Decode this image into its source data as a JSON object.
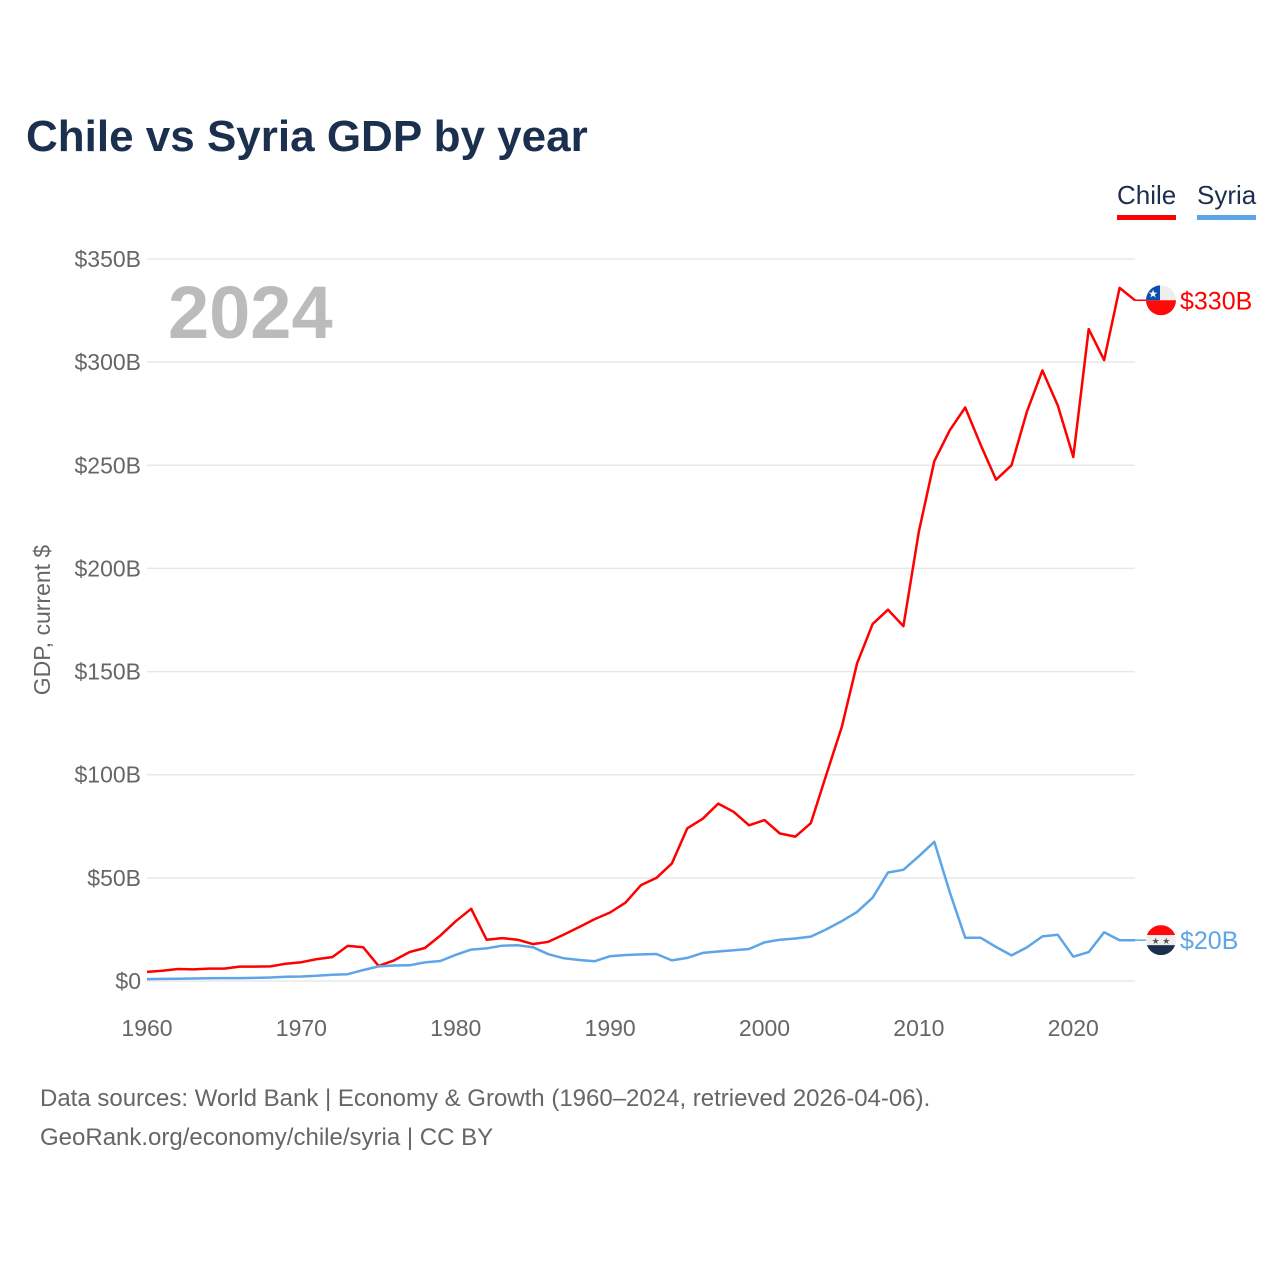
{
  "chart_data": {
    "type": "line",
    "title": "Chile vs Syria GDP by year",
    "ylabel": "GDP, current $",
    "xlabel": "",
    "year_label": "2024",
    "ylim": [
      0,
      350
    ],
    "xlim": [
      1960,
      2024
    ],
    "yticks": [
      {
        "v": 0,
        "label": "$0"
      },
      {
        "v": 50,
        "label": "$50B"
      },
      {
        "v": 100,
        "label": "$100B"
      },
      {
        "v": 150,
        "label": "$150B"
      },
      {
        "v": 200,
        "label": "$200B"
      },
      {
        "v": 250,
        "label": "$250B"
      },
      {
        "v": 300,
        "label": "$300B"
      },
      {
        "v": 350,
        "label": "$350B"
      }
    ],
    "xticks": [
      1960,
      1970,
      1980,
      1990,
      2000,
      2010,
      2020
    ],
    "grid": true,
    "legend_position": "top-right",
    "x": [
      1960,
      1961,
      1962,
      1963,
      1964,
      1965,
      1966,
      1967,
      1968,
      1969,
      1970,
      1971,
      1972,
      1973,
      1974,
      1975,
      1976,
      1977,
      1978,
      1979,
      1980,
      1981,
      1982,
      1983,
      1984,
      1985,
      1986,
      1987,
      1988,
      1989,
      1990,
      1991,
      1992,
      1993,
      1994,
      1995,
      1996,
      1997,
      1998,
      1999,
      2000,
      2001,
      2002,
      2003,
      2004,
      2005,
      2006,
      2007,
      2008,
      2009,
      2010,
      2011,
      2012,
      2013,
      2014,
      2015,
      2016,
      2017,
      2018,
      2019,
      2020,
      2021,
      2022,
      2023,
      2024
    ],
    "series": [
      {
        "name": "Chile",
        "color": "#ff0000",
        "end_label": "$330B",
        "values": [
          4.4,
          5,
          5.8,
          5.6,
          6,
          6,
          7,
          7,
          7.1,
          8.4,
          9.1,
          10.6,
          11.6,
          17,
          16.4,
          7.3,
          10,
          14,
          16,
          22,
          29,
          35,
          20,
          20.8,
          20,
          17.9,
          19,
          22.5,
          26.2,
          30,
          33.2,
          38,
          46.5,
          50,
          57,
          74,
          78.7,
          86,
          82,
          75.5,
          78,
          71.5,
          70,
          76.5,
          100,
          123,
          154,
          173,
          180,
          172,
          218,
          252,
          267,
          278,
          260,
          243,
          250,
          276,
          296,
          279,
          254,
          316,
          301,
          336,
          330
        ]
      },
      {
        "name": "Syria",
        "color": "#5ea5e8",
        "end_label": "$20B",
        "values": [
          0.9,
          1,
          1.1,
          1.2,
          1.3,
          1.4,
          1.4,
          1.5,
          1.7,
          2.1,
          2.2,
          2.5,
          3,
          3.3,
          5.3,
          7.1,
          7.5,
          7.6,
          9,
          9.7,
          12.7,
          15.2,
          15.8,
          17.1,
          17.3,
          16.4,
          13,
          11,
          10.2,
          9.6,
          12,
          12.6,
          12.9,
          13.1,
          10,
          11.2,
          13.6,
          14.3,
          14.9,
          15.5,
          18.7,
          20,
          20.6,
          21.5,
          25,
          29,
          33.5,
          40.4,
          52.6,
          53.9,
          60.5,
          67.5,
          43,
          21,
          21,
          16.5,
          12.4,
          16.3,
          21.6,
          22.4,
          11.8,
          14,
          23.6,
          19.8,
          19.8
        ]
      }
    ]
  },
  "footer": {
    "line1": "Data sources: World Bank | Economy & Growth (1960–2024, retrieved 2026-04-06).",
    "line2": "GeoRank.org/economy/chile/syria | CC BY"
  }
}
